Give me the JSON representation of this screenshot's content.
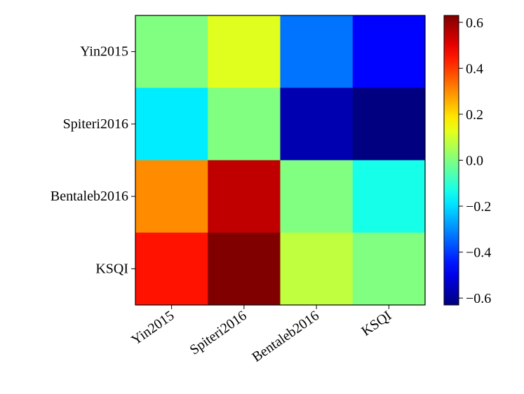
{
  "chart_data": {
    "type": "heatmap",
    "title": "",
    "xlabel": "",
    "ylabel": "",
    "rows": [
      "Yin2015",
      "Spiteri2016",
      "Bentaleb2016",
      "KSQI"
    ],
    "cols": [
      "Yin2015",
      "Spiteri2016",
      "Bentaleb2016",
      "KSQI"
    ],
    "values": [
      [
        0.0,
        0.12,
        -0.33,
        -0.47
      ],
      [
        -0.18,
        0.0,
        -0.57,
        -0.63
      ],
      [
        0.3,
        0.55,
        0.0,
        -0.13
      ],
      [
        0.45,
        0.63,
        0.08,
        0.0
      ]
    ],
    "colormap": "jet",
    "vmin": -0.63,
    "vmax": 0.63,
    "colorbar": {
      "ticks": [
        -0.6,
        -0.4,
        -0.2,
        0.0,
        0.2,
        0.4,
        0.6
      ],
      "tick_labels": [
        "−0.6",
        "−0.4",
        "−0.2",
        "0.0",
        "0.2",
        "0.4",
        "0.6"
      ]
    },
    "grid": false,
    "legend": "colorbar-right"
  }
}
